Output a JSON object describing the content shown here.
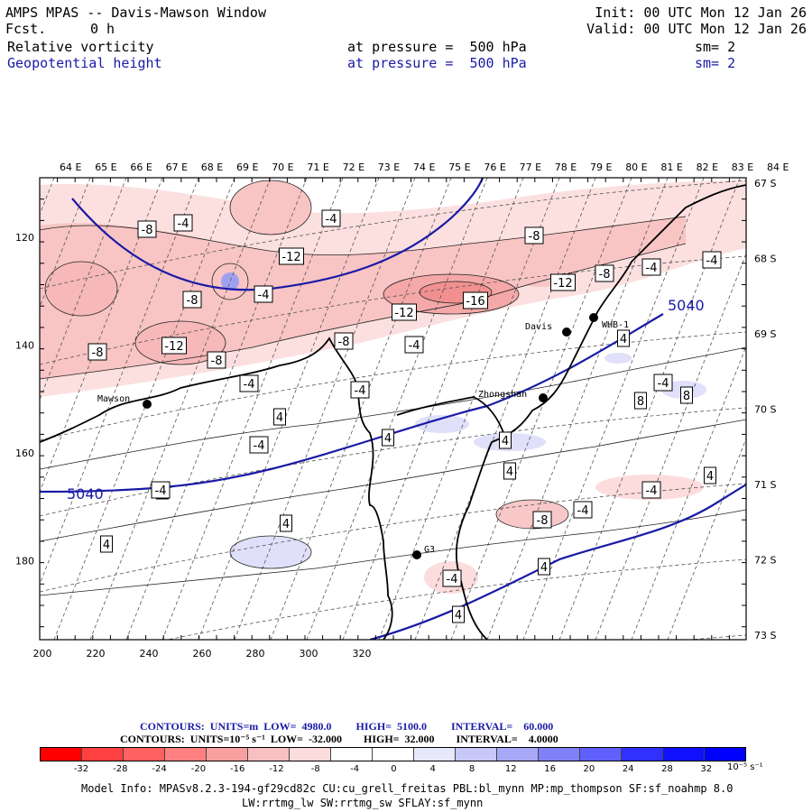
{
  "header": {
    "title": "AMPS MPAS -- Davis-Mawson Window",
    "forecast_label": "Fcst.",
    "forecast_value": "0 h",
    "init": "Init: 00 UTC Mon 12 Jan 26",
    "valid": "Valid: 00 UTC Mon 12 Jan 26",
    "field1": {
      "name": "Relative vorticity",
      "level": "at pressure =  500 hPa",
      "smooth": "sm= 2"
    },
    "field2": {
      "name": "Geopotential height",
      "level": "at pressure =  500 hPa",
      "smooth": "sm= 2"
    }
  },
  "map": {
    "top_labels": [
      "64 E",
      "65 E",
      "66 E",
      "67 E",
      "68 E",
      "69 E",
      "70 E",
      "71 E",
      "72 E",
      "73 E",
      "74 E",
      "75 E",
      "76 E",
      "77 E",
      "78 E",
      "79 E",
      "80 E",
      "81 E",
      "82 E",
      "83 E",
      "84 E"
    ],
    "right_labels": [
      "67 S",
      "68 S",
      "69 S",
      "70 S",
      "71 S",
      "72 S",
      "73 S"
    ],
    "x_ticks": [
      "200",
      "220",
      "240",
      "260",
      "280",
      "300",
      "320"
    ],
    "y_ticks": [
      "120",
      "140",
      "160",
      "180"
    ],
    "stations": [
      {
        "name": "Mawson"
      },
      {
        "name": "Davis"
      },
      {
        "name": "WHB-1"
      },
      {
        "name": "Zhongshan"
      },
      {
        "name": "G3"
      }
    ],
    "height_labels": [
      "5040",
      "5040"
    ],
    "vort_labels": [
      "-8",
      "-4",
      "-4",
      "-12",
      "-8",
      "-4",
      "-16",
      "-12",
      "-8",
      "-12",
      "-8",
      "-4",
      "-4",
      "-8",
      "-12",
      "-8",
      "-8",
      "-4",
      "-4",
      "-4",
      "-4",
      "4",
      "4",
      "4",
      "4",
      "4",
      "8",
      "4",
      "4",
      "4",
      "4",
      "-4",
      "-8",
      "-4",
      "-4",
      "4",
      "-4",
      "8",
      "4",
      "4",
      "-4",
      "4",
      "4",
      "-4"
    ]
  },
  "footer": {
    "contour1": "CONTOURS:  UNITS=m  LOW=  4980.0         HIGH=  5100.0         INTERVAL=    60.000",
    "contour2": "CONTOURS:  UNITS=10⁻⁵ s⁻¹  LOW=  -32.000        HIGH=  32.000        INTERVAL=    4.0000",
    "colorbar_labels": [
      "-32",
      "-28",
      "-24",
      "-20",
      "-16",
      "-12",
      "-8",
      "-4",
      "0",
      "4",
      "8",
      "12",
      "16",
      "20",
      "24",
      "28",
      "32"
    ],
    "colorbar_units": "10⁻⁵ s⁻¹",
    "colorbar_colors": [
      "#ff0000",
      "#ff4040",
      "#ff6060",
      "#ff8080",
      "#f8a0a0",
      "#f8c0c0",
      "#fcdcdc",
      "#ffffff",
      "#ffffff",
      "#e8e8fc",
      "#c8c8f8",
      "#a8a8f8",
      "#8080f8",
      "#6060ff",
      "#3030ff",
      "#1010ff",
      "#0000ff"
    ],
    "model_info": "Model Info: MPASv8.2.3-194-gf29cd82c CU:cu_grell_freitas PBL:bl_mynn MP:mp_thompson SF:sf_noahmp 8.0",
    "model_info2": "LW:rrtmg_lw SW:rrtmg_sw SFLAY:sf_mynn"
  }
}
